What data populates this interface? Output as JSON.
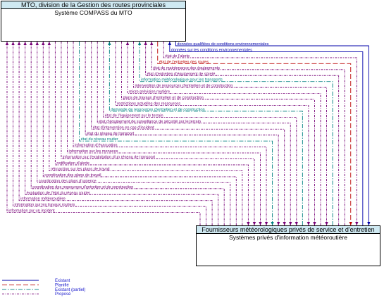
{
  "top_element": {
    "header": "MTO, division de la Gestion des routes provinciales",
    "name": "Système COMPASS du MTO"
  },
  "bottom_element": {
    "header": "Fournisseurs météorologiques privés de service et d'entretien",
    "name": "Systèmes privés d'information météoroutière"
  },
  "status_colors": {
    "existant": "#0000aa",
    "planifie": "#bb0000",
    "existant_partiel": "#008080",
    "propose": "#770077"
  },
  "flows": [
    {
      "label": "données qualifiées de conditions environnementales",
      "status": "existant",
      "dir": "down"
    },
    {
      "label": "données sur les conditions environnementales",
      "status": "existant",
      "dir": "up"
    },
    {
      "label": "état de l'alerte",
      "status": "propose",
      "dir": "down"
    },
    {
      "label": "état de l'entretien des routes",
      "status": "planifie",
      "dir": "down"
    },
    {
      "label": "état de maintenance des équipements",
      "status": "propose",
      "dir": "up"
    },
    {
      "label": "état d'entretien d'équipement de sûreté",
      "status": "propose",
      "dir": "up"
    },
    {
      "label": "information météorologique pour les transports",
      "status": "existant_partiel",
      "dir": "up"
    },
    {
      "label": "intervention de ressources d'entretien et de construction",
      "status": "propose",
      "dir": "down"
    },
    {
      "label": "micro prévision routière",
      "status": "propose",
      "dir": "up"
    },
    {
      "label": "plans de travaux d'entretien et de construction",
      "status": "propose",
      "dir": "down"
    },
    {
      "label": "restrictions actuelles des ressources",
      "status": "propose",
      "dir": "down"
    },
    {
      "label": "demande de ressources d'entretien et de construction",
      "status": "existant_partiel",
      "dir": "up"
    },
    {
      "label": "état de l'équipement sur le terrain",
      "status": "propose",
      "dir": "down"
    },
    {
      "label": "état d'équipement de surveillance de sécurité sur le terrain",
      "status": "propose",
      "dir": "down"
    },
    {
      "label": "état d'intervention en cas d'incident",
      "status": "propose",
      "dir": "down"
    },
    {
      "label": "état du réseau de transport",
      "status": "propose",
      "dir": "down"
    },
    {
      "label": "état du réseau routier",
      "status": "existant_partiel",
      "dir": "down"
    },
    {
      "label": "information d'évacuation",
      "status": "propose",
      "dir": "down"
    },
    {
      "label": "information sur les menaces",
      "status": "propose",
      "dir": "down"
    },
    {
      "label": "information sur l'exploitation d'un réseau de transport",
      "status": "propose",
      "dir": "down"
    },
    {
      "label": "notification d'alerte",
      "status": "propose",
      "dir": "down"
    },
    {
      "label": "rétroaction sur les plans de travail",
      "status": "propose",
      "dir": "up"
    },
    {
      "label": "coordination des plans de travail",
      "status": "propose",
      "dir": "up"
    },
    {
      "label": "coordination des plans d'urgence",
      "status": "propose",
      "dir": "up"
    },
    {
      "label": "coordination des ressources d'entretien et de construction",
      "status": "propose",
      "dir": "up"
    },
    {
      "label": "évaluation de l'état du réseau routier",
      "status": "propose",
      "dir": "up"
    },
    {
      "label": "information météoroutière",
      "status": "propose",
      "dir": "up"
    },
    {
      "label": "information sur les travaux routiers",
      "status": "propose",
      "dir": "up"
    },
    {
      "label": "information sur un incident",
      "status": "propose",
      "dir": "up"
    }
  ],
  "legend": [
    {
      "label": "Existant",
      "status": "existant"
    },
    {
      "label": "Planifié",
      "status": "planifie"
    },
    {
      "label": "Existant (partiel)",
      "status": "existant_partiel"
    },
    {
      "label": "Proposé",
      "status": "propose"
    }
  ]
}
